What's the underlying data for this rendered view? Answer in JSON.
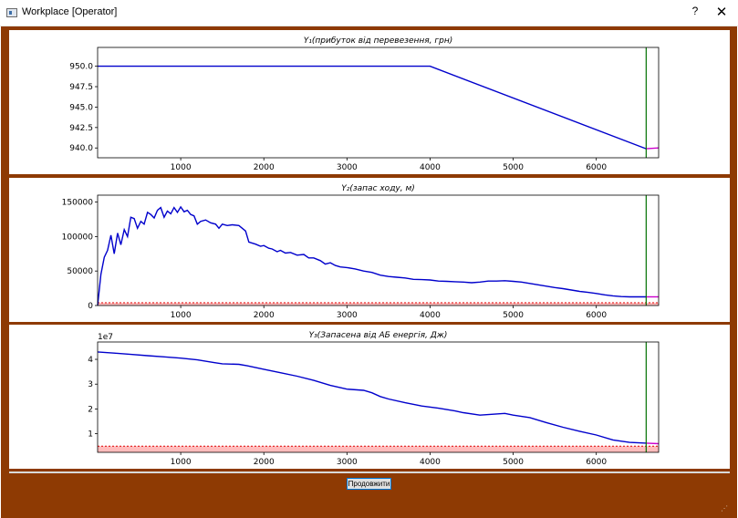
{
  "window": {
    "title": "Workplace [Operator]",
    "help_label": "?",
    "close_label": "✕"
  },
  "colors": {
    "background": "#8e3a03",
    "series": "#0000cc",
    "marker": "#007000",
    "tail": "#cc00cc",
    "threshold": "#dd0000",
    "band": "#ffbcbc"
  },
  "button": {
    "label": "Продовжити"
  },
  "chart_data": [
    {
      "type": "line",
      "title": "Y₁(прибуток від перевезення,  грн)",
      "xlim": [
        0,
        6750
      ],
      "ylim": [
        938.8,
        952.3
      ],
      "xticks": [
        1000,
        2000,
        3000,
        4000,
        5000,
        6000
      ],
      "yticks": [
        940.0,
        942.5,
        945.0,
        947.5,
        950.0
      ],
      "ytick_labels": [
        "940.0",
        "942.5",
        "945.0",
        "947.5",
        "950.0"
      ],
      "marker_x": 6600,
      "series": [
        {
          "values": [
            [
              0,
              950.0
            ],
            [
              4000,
              950.0
            ],
            [
              6600,
              939.9
            ]
          ]
        },
        {
          "values": [
            [
              6600,
              939.9
            ],
            [
              6750,
              940.0
            ]
          ]
        }
      ]
    },
    {
      "type": "line",
      "title": "Y₂(запас ходу,  м)",
      "xlim": [
        0,
        6750
      ],
      "ylim": [
        0,
        160000
      ],
      "xticks": [
        1000,
        2000,
        3000,
        4000,
        5000,
        6000
      ],
      "yticks": [
        0,
        50000,
        100000,
        150000
      ],
      "ytick_labels": [
        "0",
        "50000",
        "100000",
        "150000"
      ],
      "marker_x": 6600,
      "threshold": 4000,
      "series": [
        {
          "values": [
            [
              0,
              0
            ],
            [
              40,
              45000
            ],
            [
              80,
              70000
            ],
            [
              120,
              80000
            ],
            [
              160,
              102000
            ],
            [
              200,
              75000
            ],
            [
              240,
              105000
            ],
            [
              280,
              88000
            ],
            [
              320,
              110000
            ],
            [
              360,
              100000
            ],
            [
              400,
              128000
            ],
            [
              440,
              126000
            ],
            [
              480,
              112000
            ],
            [
              520,
              122000
            ],
            [
              560,
              118000
            ],
            [
              600,
              135000
            ],
            [
              640,
              132000
            ],
            [
              680,
              127000
            ],
            [
              720,
              138000
            ],
            [
              760,
              142000
            ],
            [
              800,
              128000
            ],
            [
              840,
              137000
            ],
            [
              880,
              133000
            ],
            [
              920,
              142000
            ],
            [
              960,
              135000
            ],
            [
              1000,
              143000
            ],
            [
              1040,
              136000
            ],
            [
              1080,
              138000
            ],
            [
              1120,
              132000
            ],
            [
              1160,
              130000
            ],
            [
              1200,
              118000
            ],
            [
              1240,
              122000
            ],
            [
              1300,
              124000
            ],
            [
              1360,
              120000
            ],
            [
              1420,
              118000
            ],
            [
              1460,
              112000
            ],
            [
              1500,
              118000
            ],
            [
              1560,
              116000
            ],
            [
              1620,
              117000
            ],
            [
              1700,
              116000
            ],
            [
              1780,
              108000
            ],
            [
              1820,
              92000
            ],
            [
              1900,
              89000
            ],
            [
              1960,
              86000
            ],
            [
              2000,
              87000
            ],
            [
              2060,
              83000
            ],
            [
              2100,
              82000
            ],
            [
              2160,
              78000
            ],
            [
              2200,
              80000
            ],
            [
              2260,
              76000
            ],
            [
              2320,
              77000
            ],
            [
              2400,
              73000
            ],
            [
              2480,
              74000
            ],
            [
              2540,
              69000
            ],
            [
              2600,
              69000
            ],
            [
              2680,
              65000
            ],
            [
              2740,
              60000
            ],
            [
              2800,
              62000
            ],
            [
              2860,
              58000
            ],
            [
              2920,
              56000
            ],
            [
              3000,
              55000
            ],
            [
              3100,
              53000
            ],
            [
              3200,
              50000
            ],
            [
              3300,
              48000
            ],
            [
              3400,
              44000
            ],
            [
              3500,
              42000
            ],
            [
              3600,
              41000
            ],
            [
              3700,
              40000
            ],
            [
              3800,
              38000
            ],
            [
              3900,
              37500
            ],
            [
              4000,
              37000
            ],
            [
              4100,
              35500
            ],
            [
              4200,
              35000
            ],
            [
              4300,
              34500
            ],
            [
              4400,
              34000
            ],
            [
              4500,
              33000
            ],
            [
              4600,
              34000
            ],
            [
              4700,
              35500
            ],
            [
              4800,
              35500
            ],
            [
              4900,
              36000
            ],
            [
              5000,
              35000
            ],
            [
              5100,
              34000
            ],
            [
              5200,
              32000
            ],
            [
              5300,
              30000
            ],
            [
              5400,
              28000
            ],
            [
              5500,
              26000
            ],
            [
              5600,
              24500
            ],
            [
              5700,
              22500
            ],
            [
              5800,
              20500
            ],
            [
              5900,
              19000
            ],
            [
              6000,
              17500
            ],
            [
              6100,
              15500
            ],
            [
              6200,
              14000
            ],
            [
              6300,
              13000
            ],
            [
              6400,
              12500
            ],
            [
              6500,
              12500
            ],
            [
              6600,
              12500
            ]
          ]
        },
        {
          "values": [
            [
              6600,
              12500
            ],
            [
              6750,
              12500
            ]
          ]
        }
      ]
    },
    {
      "type": "line",
      "title": "Y₃(Запасена від АБ енергія,  Дж)",
      "xlim": [
        0,
        6750
      ],
      "ylim": [
        2500000,
        47000000
      ],
      "offset_label": "1e7",
      "xticks": [
        1000,
        2000,
        3000,
        4000,
        5000,
        6000
      ],
      "yticks": [
        10000000,
        20000000,
        30000000,
        40000000
      ],
      "ytick_labels": [
        "1",
        "2",
        "3",
        "4"
      ],
      "marker_x": 6600,
      "threshold": 5000000,
      "series": [
        {
          "values": [
            [
              0,
              43000000
            ],
            [
              200,
              42500000
            ],
            [
              400,
              42000000
            ],
            [
              600,
              41500000
            ],
            [
              800,
              41000000
            ],
            [
              1000,
              40500000
            ],
            [
              1200,
              39800000
            ],
            [
              1400,
              38700000
            ],
            [
              1500,
              38200000
            ],
            [
              1700,
              38000000
            ],
            [
              1800,
              37400000
            ],
            [
              2000,
              36000000
            ],
            [
              2200,
              34600000
            ],
            [
              2400,
              33200000
            ],
            [
              2600,
              31500000
            ],
            [
              2800,
              29500000
            ],
            [
              3000,
              28000000
            ],
            [
              3200,
              27500000
            ],
            [
              3300,
              26500000
            ],
            [
              3400,
              25000000
            ],
            [
              3500,
              24000000
            ],
            [
              3700,
              22500000
            ],
            [
              3900,
              21200000
            ],
            [
              4100,
              20300000
            ],
            [
              4300,
              19200000
            ],
            [
              4400,
              18500000
            ],
            [
              4600,
              17500000
            ],
            [
              4800,
              18000000
            ],
            [
              4900,
              18200000
            ],
            [
              5000,
              17500000
            ],
            [
              5200,
              16500000
            ],
            [
              5400,
              14500000
            ],
            [
              5600,
              12600000
            ],
            [
              5800,
              11000000
            ],
            [
              6000,
              9500000
            ],
            [
              6200,
              7500000
            ],
            [
              6400,
              6500000
            ],
            [
              6600,
              6200000
            ]
          ]
        },
        {
          "values": [
            [
              6600,
              6200000
            ],
            [
              6750,
              6000000
            ]
          ]
        }
      ]
    }
  ]
}
